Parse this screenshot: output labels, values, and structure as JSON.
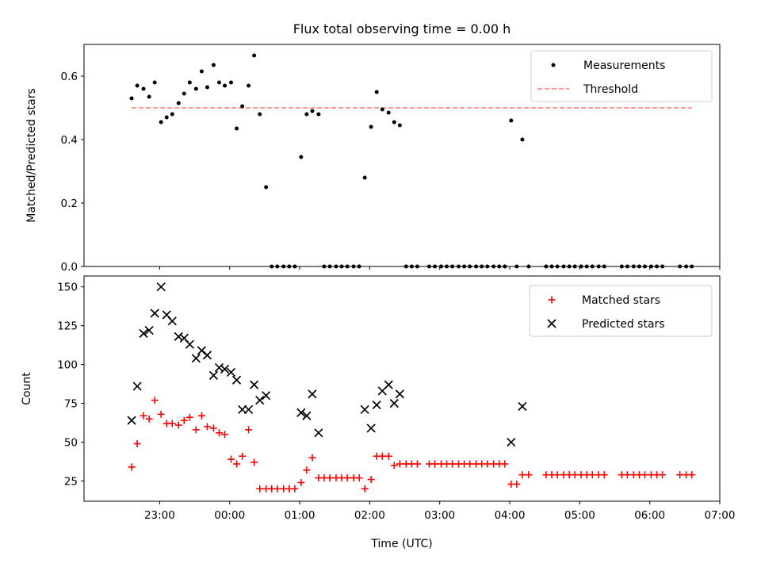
{
  "chart_data": {
    "title": "Flux total observing time = 0.00 h",
    "x_axis": {
      "label": "Time (UTC)",
      "tick_labels": [
        "23:00",
        "00:00",
        "01:00",
        "02:00",
        "03:00",
        "04:00",
        "05:00",
        "06:00",
        "07:00"
      ],
      "range_hours": [
        21.92,
        31.0
      ]
    },
    "panels": [
      {
        "type": "scatter",
        "ylabel": "Matched/Predicted stars",
        "ylim": [
          0,
          0.7
        ],
        "yticks": [
          "0.0",
          "0.2",
          "0.4",
          "0.6"
        ],
        "legend_position": "top-right",
        "series": [
          {
            "name": "Measurements",
            "color": "#000000",
            "marker": "dot",
            "x": [
              22.6,
              22.68,
              22.77,
              22.85,
              22.93,
              23.02,
              23.1,
              23.18,
              23.27,
              23.35,
              23.43,
              23.52,
              23.6,
              23.68,
              23.77,
              23.85,
              23.93,
              24.02,
              24.1,
              24.18,
              24.27,
              24.35,
              24.43,
              24.52,
              24.6,
              24.68,
              24.77,
              24.85,
              24.93,
              25.02,
              25.1,
              25.18,
              25.27,
              25.35,
              25.43,
              25.52,
              25.6,
              25.68,
              25.77,
              25.85,
              25.93,
              26.02,
              26.1,
              26.18,
              26.27,
              26.35,
              26.43,
              26.52,
              26.6,
              26.68,
              26.85,
              26.93,
              27.02,
              27.1,
              27.18,
              27.27,
              27.35,
              27.43,
              27.52,
              27.6,
              27.68,
              27.77,
              27.85,
              27.93,
              28.02,
              28.1,
              28.18,
              28.27,
              28.52,
              28.6,
              28.68,
              28.77,
              28.85,
              28.93,
              29.02,
              29.1,
              29.18,
              29.27,
              29.35,
              29.6,
              29.68,
              29.77,
              29.85,
              29.93,
              30.02,
              30.1,
              30.18,
              30.43,
              30.52,
              30.6
            ],
            "y": [
              0.53,
              0.57,
              0.56,
              0.535,
              0.58,
              0.455,
              0.47,
              0.48,
              0.515,
              0.545,
              0.58,
              0.56,
              0.615,
              0.565,
              0.635,
              0.58,
              0.57,
              0.58,
              0.435,
              0.505,
              0.57,
              0.665,
              0.48,
              0.25,
              0.0,
              0.0,
              0.0,
              0.0,
              0.0,
              0.345,
              0.48,
              0.49,
              0.48,
              0.0,
              0.0,
              0.0,
              0.0,
              0.0,
              0.0,
              0.0,
              0.28,
              0.44,
              0.55,
              0.495,
              0.485,
              0.455,
              0.445,
              0.0,
              0.0,
              0.0,
              0.0,
              0.0,
              0.0,
              0.0,
              0.0,
              0.0,
              0.0,
              0.0,
              0.0,
              0.0,
              0.0,
              0.0,
              0.0,
              0.0,
              0.46,
              0.0,
              0.4,
              0.0,
              0.0,
              0.0,
              0.0,
              0.0,
              0.0,
              0.0,
              0.0,
              0.0,
              0.0,
              0.0,
              0.0,
              0.0,
              0.0,
              0.0,
              0.0,
              0.0,
              0.0,
              0.0,
              0.0,
              0.0,
              0.0,
              0.0
            ]
          },
          {
            "name": "Threshold",
            "color": "#ff7777",
            "style": "dashed",
            "x": [
              22.6,
              30.6
            ],
            "y": [
              0.5,
              0.5
            ]
          }
        ]
      },
      {
        "type": "scatter",
        "ylabel": "Count",
        "ylim": [
          12,
          157
        ],
        "yticks": [
          "25",
          "50",
          "75",
          "100",
          "125",
          "150"
        ],
        "legend_position": "top-right",
        "series": [
          {
            "name": "Matched stars",
            "color": "#ff0000",
            "marker": "plus",
            "x": [
              22.6,
              22.68,
              22.77,
              22.85,
              22.93,
              23.02,
              23.1,
              23.18,
              23.27,
              23.35,
              23.43,
              23.52,
              23.6,
              23.68,
              23.77,
              23.85,
              23.93,
              24.02,
              24.1,
              24.18,
              24.27,
              24.35,
              24.43,
              24.52,
              24.6,
              24.68,
              24.77,
              24.85,
              24.93,
              25.02,
              25.1,
              25.18,
              25.27,
              25.35,
              25.43,
              25.52,
              25.6,
              25.68,
              25.77,
              25.85,
              25.93,
              26.02,
              26.1,
              26.18,
              26.27,
              26.35,
              26.43,
              26.52,
              26.6,
              26.68,
              26.85,
              26.93,
              27.02,
              27.1,
              27.18,
              27.27,
              27.35,
              27.43,
              27.52,
              27.6,
              27.68,
              27.77,
              27.85,
              27.93,
              28.02,
              28.1,
              28.18,
              28.27,
              28.52,
              28.6,
              28.68,
              28.77,
              28.85,
              28.93,
              29.02,
              29.1,
              29.18,
              29.27,
              29.35,
              29.6,
              29.68,
              29.77,
              29.85,
              29.93,
              30.02,
              30.1,
              30.18,
              30.43,
              30.52,
              30.6
            ],
            "y": [
              34,
              49,
              67,
              65,
              77,
              68,
              62,
              62,
              61,
              64,
              66,
              58,
              67,
              60,
              59,
              56,
              55,
              39,
              36,
              41,
              58,
              37,
              20,
              20,
              20,
              20,
              20,
              20,
              20,
              24,
              32,
              40,
              27,
              27,
              27,
              27,
              27,
              27,
              27,
              27,
              20,
              26,
              41,
              41,
              41,
              35,
              36,
              36,
              36,
              36,
              36,
              36,
              36,
              36,
              36,
              36,
              36,
              36,
              36,
              36,
              36,
              36,
              36,
              36,
              23,
              23,
              29,
              29,
              29,
              29,
              29,
              29,
              29,
              29,
              29,
              29,
              29,
              29,
              29,
              29,
              29,
              29,
              29,
              29,
              29,
              29,
              29,
              29,
              29,
              29
            ]
          },
          {
            "name": "Predicted stars",
            "color": "#000000",
            "marker": "x",
            "x": [
              22.6,
              22.68,
              22.77,
              22.85,
              22.93,
              23.02,
              23.1,
              23.18,
              23.27,
              23.35,
              23.43,
              23.52,
              23.6,
              23.68,
              23.77,
              23.85,
              23.93,
              24.02,
              24.1,
              24.18,
              24.27,
              24.35,
              24.43,
              24.52,
              25.02,
              25.1,
              25.18,
              25.27,
              25.93,
              26.02,
              26.1,
              26.18,
              26.27,
              26.35,
              26.43,
              28.02,
              28.18
            ],
            "y": [
              64,
              86,
              120,
              122,
              133,
              150,
              132,
              128,
              118,
              117,
              113,
              104,
              109,
              106,
              93,
              98,
              97,
              95,
              90,
              71,
              71,
              87,
              77,
              80,
              69,
              67,
              81,
              56,
              71,
              59,
              74,
              83,
              87,
              75,
              81,
              50,
              73
            ]
          }
        ]
      }
    ]
  }
}
